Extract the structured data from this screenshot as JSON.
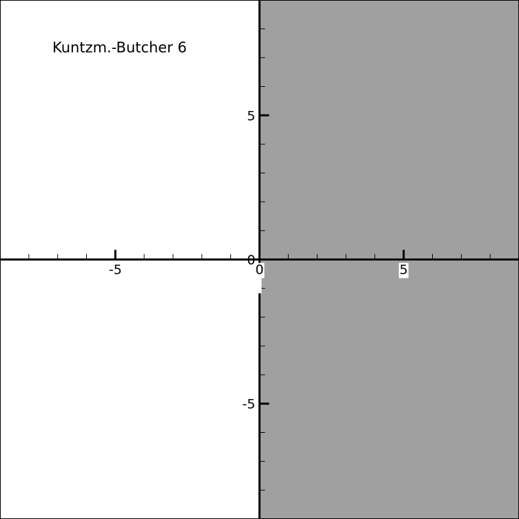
{
  "chart_data": {
    "type": "area",
    "title": "Kuntzm.-Butcher 6",
    "xlabel": "",
    "ylabel": "",
    "xlim": [
      -9,
      9
    ],
    "ylim": [
      -9,
      9
    ],
    "x_ticks": [
      -5,
      0,
      5
    ],
    "y_ticks": [
      5,
      0,
      -5
    ],
    "x_tick_labels": [
      "-5",
      "0",
      "5"
    ],
    "y_tick_labels": [
      "5",
      "0",
      "-5"
    ],
    "minor_tick_step": 1,
    "grid": false,
    "legend": "none",
    "region": {
      "description": "shaded half-plane",
      "x_min": 0,
      "x_max": 9,
      "y_min": -9,
      "y_max": 9,
      "color": "#a0a0a0"
    },
    "colors": {
      "background": "#ffffff",
      "axis": "#000000",
      "region": "#a0a0a0"
    }
  }
}
